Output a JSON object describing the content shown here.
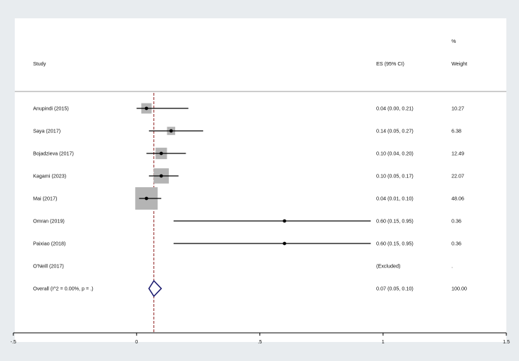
{
  "chart_data": {
    "type": "forest",
    "headers": {
      "study": "Study",
      "es": "ES (95% CI)",
      "weight_top": "%",
      "weight": "Weight"
    },
    "studies": [
      {
        "name": "Anupindi (2015)",
        "es": 0.04,
        "lower": 0.0,
        "upper": 0.21,
        "ci_text": "0.04 (0.00, 0.21)",
        "weight": 10.27,
        "weight_text": "10.27"
      },
      {
        "name": "Saya (2017)",
        "es": 0.14,
        "lower": 0.05,
        "upper": 0.27,
        "ci_text": "0.14 (0.05, 0.27)",
        "weight": 6.38,
        "weight_text": "6.38"
      },
      {
        "name": "Bojadzieva (2017)",
        "es": 0.1,
        "lower": 0.04,
        "upper": 0.2,
        "ci_text": "0.10 (0.04, 0.20)",
        "weight": 12.49,
        "weight_text": "12.49"
      },
      {
        "name": "Kagami (2023)",
        "es": 0.1,
        "lower": 0.05,
        "upper": 0.17,
        "ci_text": "0.10 (0.05, 0.17)",
        "weight": 22.07,
        "weight_text": "22.07"
      },
      {
        "name": "Mai (2017)",
        "es": 0.04,
        "lower": 0.01,
        "upper": 0.1,
        "ci_text": "0.04 (0.01, 0.10)",
        "weight": 48.06,
        "weight_text": "48.06"
      },
      {
        "name": "Omran (2019)",
        "es": 0.6,
        "lower": 0.15,
        "upper": 0.95,
        "ci_text": "0.60 (0.15, 0.95)",
        "weight": 0.36,
        "weight_text": "0.36"
      },
      {
        "name": "Paixiao (2018)",
        "es": 0.6,
        "lower": 0.15,
        "upper": 0.95,
        "ci_text": "0.60 (0.15, 0.95)",
        "weight": 0.36,
        "weight_text": "0.36"
      },
      {
        "name": "O'Neill (2017)",
        "es": null,
        "lower": null,
        "upper": null,
        "ci_text": "(Excluded)",
        "weight": null,
        "weight_text": "."
      }
    ],
    "overall": {
      "name": "Overall  (I^2 = 0.00%, p = .)",
      "es": 0.07,
      "lower": 0.05,
      "upper": 0.1,
      "ci_text": "0.07 (0.05, 0.10)",
      "weight_text": "100.00"
    },
    "xlim": [
      -0.5,
      1.5
    ],
    "xticks": [
      -0.5,
      0,
      0.5,
      1,
      1.5
    ],
    "xtick_labels": [
      "-.5",
      "0",
      ".5",
      "1",
      "1.5"
    ],
    "reference_line": 0.07,
    "colors": {
      "box": "#b4b4b4",
      "diamond": "#1a1a6e",
      "ref_line": "#8b1a1a",
      "ci": "#000000"
    }
  }
}
